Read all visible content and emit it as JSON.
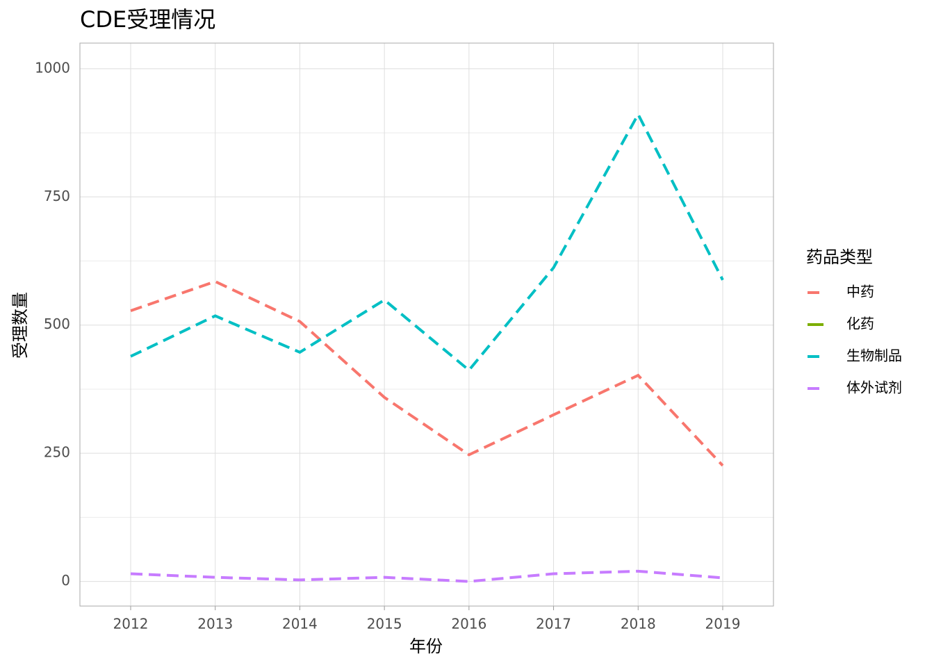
{
  "chart_data": {
    "type": "line",
    "title": "CDE受理情况",
    "x_label": "年份",
    "y_label": "受理数量",
    "legend_title": "药品类型",
    "x": [
      2012,
      2013,
      2014,
      2015,
      2016,
      2017,
      2018,
      2019
    ],
    "series": [
      {
        "name": "中药",
        "color": "#F8766D",
        "dash": true,
        "values": [
          528,
          585,
          507,
          359,
          247,
          325,
          402,
          226
        ]
      },
      {
        "name": "化药",
        "color": "#7CAE00",
        "dash": false,
        "values": [
          null,
          null,
          null,
          null,
          null,
          null,
          null,
          null
        ]
      },
      {
        "name": "生物制品",
        "color": "#00BFC4",
        "dash": true,
        "values": [
          439,
          518,
          447,
          549,
          412,
          612,
          911,
          588
        ]
      },
      {
        "name": "体外试剂",
        "color": "#C77CFF",
        "dash": true,
        "values": [
          15,
          8,
          3,
          8,
          0,
          15,
          20,
          7
        ]
      }
    ],
    "xlim": [
      2011.4,
      2019.6
    ],
    "xticks": [
      2012,
      2013,
      2014,
      2015,
      2016,
      2017,
      2018,
      2019
    ],
    "ylim": [
      -48,
      1050
    ],
    "yticks": [
      0,
      250,
      500,
      750,
      1000
    ],
    "yminor": [
      125,
      375,
      625,
      875
    ],
    "grid": true,
    "legend": "right"
  }
}
